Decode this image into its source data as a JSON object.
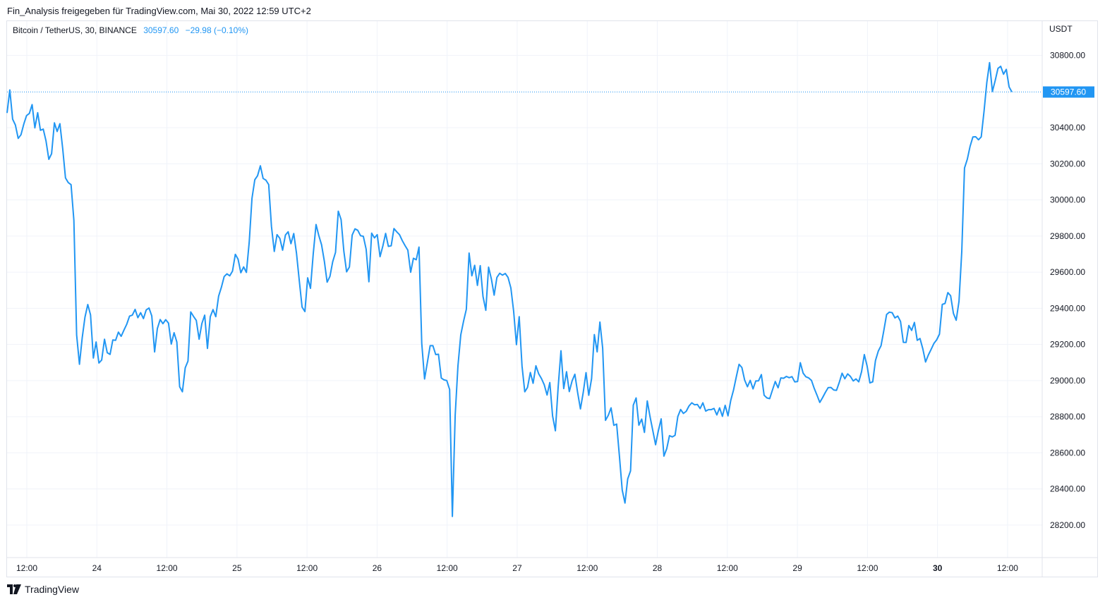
{
  "header": {
    "caption": "Fin_Analysis freigegeben für TradingView.com, Mai 30, 2022 12:59 UTC+2"
  },
  "legend": {
    "symbol": "Bitcoin / TetherUS, 30, BINANCE",
    "last": "30597.60",
    "change": "−29.98 (−0.10%)"
  },
  "price_scale": {
    "currency": "USDT",
    "last_price_label": "30597.60"
  },
  "footer": {
    "brand": "TradingView"
  },
  "colors": {
    "line": "#2196f3",
    "grid": "#f0f3fa",
    "text": "#131722"
  },
  "chart_data": {
    "type": "line",
    "title": "Bitcoin / TetherUS, 30, BINANCE",
    "ylabel": "USDT",
    "ylim": [
      28020,
      30990
    ],
    "grid": true,
    "x_ticks": [
      "12:00",
      "24",
      "12:00",
      "25",
      "12:00",
      "26",
      "12:00",
      "27",
      "12:00",
      "28",
      "12:00",
      "29",
      "12:00",
      "30",
      "12:00"
    ],
    "y_ticks": [
      {
        "value": 28200,
        "label": "28200.00"
      },
      {
        "value": 28400,
        "label": "28400.00"
      },
      {
        "value": 28600,
        "label": "28600.00"
      },
      {
        "value": 28800,
        "label": "28800.00"
      },
      {
        "value": 29000,
        "label": "29000.00"
      },
      {
        "value": 29200,
        "label": "29200.00"
      },
      {
        "value": 29400,
        "label": "29400.00"
      },
      {
        "value": 29600,
        "label": "29600.00"
      },
      {
        "value": 29800,
        "label": "29800.00"
      },
      {
        "value": 30000,
        "label": "30000.00"
      },
      {
        "value": 30200,
        "label": "30200.00"
      },
      {
        "value": 30400,
        "label": "30400.00"
      },
      {
        "value": 30800,
        "label": "30800.00"
      }
    ],
    "last_value": 30597.6,
    "series": [
      {
        "values": [
          30482,
          30609,
          30447,
          30415,
          30341,
          30361,
          30420,
          30467,
          30479,
          30528,
          30399,
          30483,
          30386,
          30392,
          30327,
          30225,
          30256,
          30427,
          30379,
          30422,
          30283,
          30122,
          30096,
          30085,
          29887,
          29253,
          29090,
          29237,
          29351,
          29421,
          29364,
          29125,
          29214,
          29097,
          29114,
          29229,
          29154,
          29145,
          29225,
          29223,
          29268,
          29245,
          29280,
          29312,
          29357,
          29362,
          29394,
          29348,
          29376,
          29343,
          29391,
          29402,
          29358,
          29159,
          29288,
          29338,
          29315,
          29337,
          29318,
          29202,
          29265,
          29214,
          28966,
          28938,
          29071,
          29108,
          29380,
          29355,
          29333,
          29229,
          29316,
          29362,
          29178,
          29354,
          29393,
          29354,
          29467,
          29516,
          29576,
          29591,
          29580,
          29606,
          29699,
          29672,
          29597,
          29629,
          29599,
          29767,
          30009,
          30112,
          30134,
          30189,
          30119,
          30110,
          30085,
          29854,
          29715,
          29808,
          29787,
          29722,
          29806,
          29824,
          29758,
          29814,
          29705,
          29551,
          29407,
          29382,
          29569,
          29511,
          29701,
          29864,
          29803,
          29752,
          29660,
          29545,
          29577,
          29658,
          29710,
          29938,
          29891,
          29716,
          29602,
          29629,
          29806,
          29840,
          29832,
          29802,
          29799,
          29727,
          29547,
          29816,
          29790,
          29808,
          29686,
          29744,
          29815,
          29743,
          29746,
          29842,
          29824,
          29808,
          29775,
          29747,
          29722,
          29600,
          29677,
          29669,
          29739,
          29207,
          29009,
          29099,
          29193,
          29193,
          29144,
          29146,
          29014,
          29004,
          29000,
          28951,
          28248,
          28809,
          29081,
          29253,
          29328,
          29395,
          29706,
          29580,
          29638,
          29527,
          29636,
          29466,
          29389,
          29628,
          29562,
          29473,
          29571,
          29594,
          29584,
          29593,
          29571,
          29513,
          29385,
          29199,
          29354,
          29081,
          28938,
          28962,
          29045,
          28985,
          29082,
          29038,
          29011,
          28977,
          28920,
          28989,
          28805,
          28722,
          28963,
          29165,
          28956,
          29049,
          28939,
          28999,
          29035,
          28934,
          28843,
          28933,
          29044,
          28919,
          29011,
          29255,
          29159,
          29324,
          29179,
          28780,
          28807,
          28849,
          28752,
          28759,
          28584,
          28394,
          28322,
          28456,
          28500,
          28864,
          28904,
          28753,
          28787,
          28713,
          28887,
          28801,
          28724,
          28645,
          28722,
          28788,
          28582,
          28623,
          28695,
          28688,
          28697,
          28801,
          28840,
          28818,
          28830,
          28859,
          28877,
          28866,
          28868,
          28845,
          28877,
          28831,
          28839,
          28839,
          28846,
          28810,
          28849,
          28802,
          28863,
          28805,
          28890,
          28947,
          29021,
          29090,
          29072,
          29003,
          28966,
          29001,
          28954,
          28998,
          28999,
          29033,
          28919,
          28904,
          28900,
          28949,
          28995,
          28960,
          29015,
          29013,
          29023,
          29016,
          29022,
          28993,
          28995,
          29099,
          29041,
          29021,
          29015,
          29001,
          28957,
          28919,
          28879,
          28906,
          28935,
          28961,
          28962,
          28948,
          28946,
          28990,
          29041,
          29010,
          29037,
          29023,
          28998,
          29009,
          28993,
          29049,
          29144,
          29080,
          28987,
          28993,
          29111,
          29163,
          29193,
          29276,
          29366,
          29379,
          29376,
          29347,
          29357,
          29328,
          29212,
          29211,
          29305,
          29278,
          29322,
          29223,
          29233,
          29176,
          29103,
          29142,
          29173,
          29206,
          29226,
          29257,
          29422,
          29427,
          29487,
          29470,
          29372,
          29334,
          29439,
          29713,
          30177,
          30226,
          30297,
          30349,
          30350,
          30333,
          30349,
          30492,
          30650,
          30760,
          30600,
          30660,
          30728,
          30740,
          30696,
          30723,
          30626,
          30598
        ]
      }
    ]
  }
}
